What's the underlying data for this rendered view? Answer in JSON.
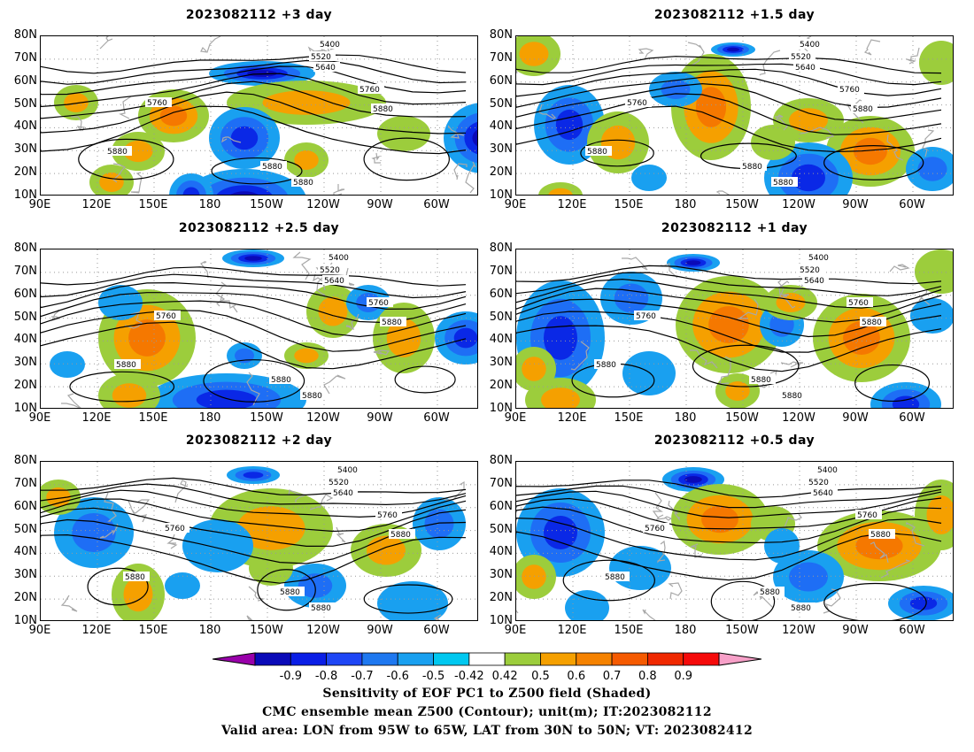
{
  "panels": [
    {
      "title": "2023082112  +3 day",
      "variant": 1
    },
    {
      "title": "2023082112  +1.5 day",
      "variant": 2
    },
    {
      "title": "2023082112  +2.5 day",
      "variant": 3
    },
    {
      "title": "2023082112  +1 day",
      "variant": 4
    },
    {
      "title": "2023082112  +2 day",
      "variant": 5
    },
    {
      "title": "2023082112  +0.5 day",
      "variant": 6
    }
  ],
  "axes": {
    "lat_labels": [
      "80N",
      "70N",
      "60N",
      "50N",
      "40N",
      "30N",
      "20N",
      "10N"
    ],
    "lon_labels": [
      "90E",
      "120E",
      "150E",
      "180",
      "150W",
      "120W",
      "90W",
      "60W"
    ],
    "lat_range": [
      10,
      80
    ],
    "lon_range": [
      90,
      330
    ]
  },
  "contour_labels": [
    "5400",
    "5520",
    "5640",
    "5760",
    "5880"
  ],
  "colorbar": {
    "colors": [
      "#9900aa",
      "#0a0ab8",
      "#0a1ee6",
      "#1e46f5",
      "#1e78f0",
      "#19a0f0",
      "#00c8f0",
      "#ffffff",
      "#9ccd3c",
      "#f5a000",
      "#f58200",
      "#f55a00",
      "#f02800",
      "#f50a0a",
      "#f7a0c8"
    ],
    "labels": [
      "-0.9",
      "-0.8",
      "-0.7",
      "-0.6",
      "-0.5",
      "-0.42",
      "0.42",
      "0.5",
      "0.6",
      "0.7",
      "0.8",
      "0.9"
    ]
  },
  "caption": {
    "line1": "Sensitivity of EOF PC1 to Z500 field (Shaded)",
    "line2": "CMC ensemble mean Z500 (Contour); unit(m); IT:2023082112",
    "line3": "Valid area: LON from 95W to 65W, LAT from 30N to 50N; VT: 2023082412"
  }
}
